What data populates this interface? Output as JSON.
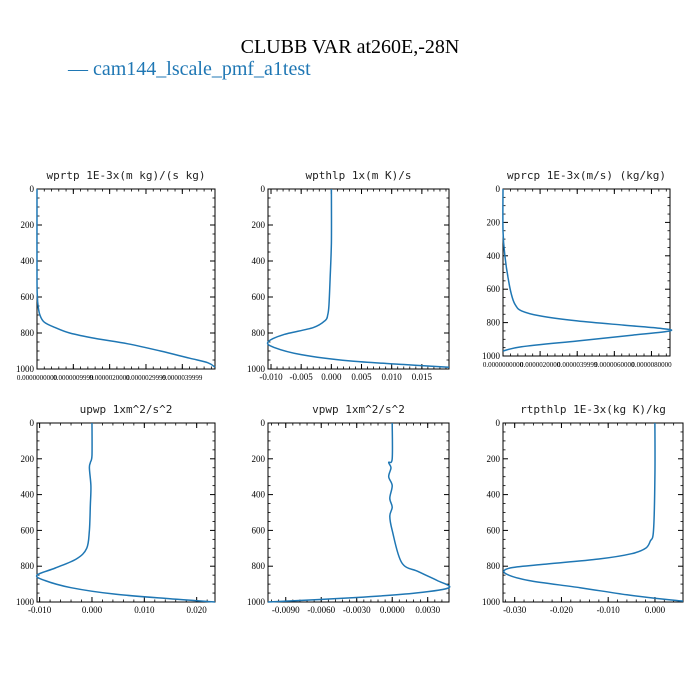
{
  "header": {
    "title": "CLUBB VAR at260E,-28N",
    "legend_dash": "—",
    "legend_label": "cam144_lscale_pmf_a1test"
  },
  "colors": {
    "series": "#1f77b4",
    "axis": "#000000"
  },
  "chart_data": [
    {
      "type": "line",
      "title": "wprtp   1E-3x(m kg)/(s kg)",
      "xlim": [
        0,
        4.9e-06
      ],
      "ylim": [
        1000,
        0
      ],
      "xticks": [
        0,
        1e-06,
        2e-06,
        3e-06,
        4e-06
      ],
      "xtick_labels": [
        "0.0000000000",
        "0.0000009999",
        "0.0000020000",
        "0.0000029999",
        "0.0000039999"
      ],
      "xtick_style": "dense",
      "yticks": [
        0,
        200,
        400,
        600,
        800,
        1000
      ],
      "ytick_labels": [
        "0",
        "200",
        "400",
        "600",
        "800",
        "1000"
      ],
      "series": [
        {
          "name": "cam144_lscale_pmf_a1test",
          "x": [
            0,
            0,
            1e-08,
            3e-08,
            8e-08,
            2e-07,
            5e-07,
            9e-07,
            1.6e-06,
            2.5e-06,
            3.4e-06,
            4.2e-06,
            4.7e-06,
            4.9e-06
          ],
          "y": [
            0,
            500,
            600,
            650,
            700,
            740,
            770,
            800,
            830,
            860,
            900,
            940,
            965,
            990
          ]
        }
      ]
    },
    {
      "type": "line",
      "title": "wpthlp   1x(m K)/s",
      "xlim": [
        -0.0105,
        0.0195
      ],
      "ylim": [
        1000,
        0
      ],
      "xticks": [
        -0.01,
        -0.005,
        0,
        0.005,
        0.01,
        0.015
      ],
      "xtick_labels": [
        "-0.010",
        "-0.005",
        "0.000",
        "0.005",
        "0.010",
        "0.015"
      ],
      "xtick_style": "normal",
      "yticks": [
        0,
        200,
        400,
        600,
        800,
        1000
      ],
      "ytick_labels": [
        "0",
        "200",
        "400",
        "600",
        "800",
        "1000"
      ],
      "series": [
        {
          "name": "cam144_lscale_pmf_a1test",
          "x": [
            0,
            0,
            -0.0002,
            -0.0004,
            -0.0006,
            -0.001,
            -0.003,
            -0.008,
            -0.0105,
            -0.0095,
            -0.005,
            0.003,
            0.012,
            0.0195
          ],
          "y": [
            0,
            300,
            500,
            650,
            700,
            730,
            770,
            810,
            850,
            880,
            920,
            955,
            975,
            990
          ]
        }
      ]
    },
    {
      "type": "line",
      "title": "wprcp   1E-3x(m/s) (kg/kg)",
      "xlim": [
        0,
        9e-06
      ],
      "ylim": [
        1000,
        0
      ],
      "xticks": [
        0,
        2e-06,
        4e-06,
        6e-06,
        8e-06
      ],
      "xtick_labels": [
        "0.0000000000",
        "0.0000020000",
        "0.0000039999",
        "0.0000060000",
        "0.0000080000"
      ],
      "xtick_style": "dense",
      "yticks": [
        0,
        200,
        400,
        600,
        800,
        1000
      ],
      "ytick_labels": [
        "0",
        "200",
        "400",
        "600",
        "800",
        "1000"
      ],
      "series": [
        {
          "name": "cam144_lscale_pmf_a1test",
          "x": [
            0,
            0,
            1e-07,
            3e-07,
            5e-07,
            7e-07,
            1e-06,
            2e-06,
            4e-06,
            6.5e-06,
            8.5e-06,
            9e-06,
            7e-06,
            4e-06,
            1e-06,
            0
          ],
          "y": [
            0,
            250,
            400,
            550,
            650,
            700,
            730,
            760,
            790,
            815,
            835,
            850,
            875,
            910,
            945,
            970
          ]
        }
      ]
    },
    {
      "type": "line",
      "title": "upwp   1xm^2/s^2",
      "xlim": [
        -0.0105,
        0.0235
      ],
      "ylim": [
        1000,
        0
      ],
      "xticks": [
        -0.01,
        0,
        0.01,
        0.02
      ],
      "xtick_labels": [
        "-0.010",
        "0.000",
        "0.010",
        "0.020"
      ],
      "xtick_style": "normal",
      "yticks": [
        0,
        200,
        400,
        600,
        800,
        1000
      ],
      "ytick_labels": [
        "0",
        "200",
        "400",
        "600",
        "800",
        "1000"
      ],
      "series": [
        {
          "name": "cam144_lscale_pmf_a1test",
          "x": [
            0,
            0,
            -0.0003,
            -0.0005,
            -0.0002,
            -0.0003,
            -0.0005,
            -0.001,
            -0.003,
            -0.007,
            -0.0105,
            -0.009,
            -0.004,
            0.004,
            0.014,
            0.0235
          ],
          "y": [
            0,
            180,
            220,
            250,
            350,
            450,
            600,
            700,
            760,
            810,
            850,
            880,
            920,
            955,
            980,
            1000
          ]
        }
      ]
    },
    {
      "type": "line",
      "title": "vpwp   1xm^2/s^2",
      "xlim": [
        -0.0105,
        0.0048
      ],
      "ylim": [
        1000,
        0
      ],
      "xticks": [
        -0.009,
        -0.006,
        -0.003,
        0,
        0.003
      ],
      "xtick_labels": [
        "-0.0090",
        "-0.0060",
        "-0.0030",
        "0.0000",
        "0.0030"
      ],
      "xtick_style": "normal",
      "yticks": [
        0,
        200,
        400,
        600,
        800,
        1000
      ],
      "ytick_labels": [
        "0",
        "200",
        "400",
        "600",
        "800",
        "1000"
      ],
      "series": [
        {
          "name": "cam144_lscale_pmf_a1test",
          "x": [
            0,
            0,
            -0.0003,
            -0.0001,
            -0.0003,
            0,
            -0.0002,
            0,
            -0.0002,
            0,
            0.0008,
            0.0022,
            0.0038,
            0.0048,
            0.002,
            -0.003,
            -0.0105
          ],
          "y": [
            0,
            200,
            220,
            250,
            300,
            350,
            420,
            470,
            520,
            600,
            780,
            830,
            880,
            920,
            950,
            975,
            1000
          ]
        }
      ]
    },
    {
      "type": "line",
      "title": "rtpthlp   1E-3x(kg K)/kg",
      "xlim": [
        -0.0325,
        0.006
      ],
      "ylim": [
        1000,
        0
      ],
      "xticks": [
        -0.03,
        -0.02,
        -0.01,
        0
      ],
      "xtick_labels": [
        "-0.030",
        "-0.020",
        "-0.010",
        "0.000"
      ],
      "xtick_style": "normal",
      "yticks": [
        0,
        200,
        400,
        600,
        800,
        1000
      ],
      "ytick_labels": [
        "0",
        "200",
        "400",
        "600",
        "800",
        "1000"
      ],
      "series": [
        {
          "name": "cam144_lscale_pmf_a1test",
          "x": [
            0,
            0,
            -0.0003,
            -0.001,
            -0.002,
            -0.005,
            -0.012,
            -0.024,
            -0.031,
            -0.032,
            -0.027,
            -0.016,
            -0.006,
            0.002,
            0.006
          ],
          "y": [
            0,
            300,
            600,
            660,
            700,
            730,
            760,
            790,
            810,
            840,
            880,
            920,
            960,
            985,
            995
          ]
        }
      ]
    }
  ]
}
